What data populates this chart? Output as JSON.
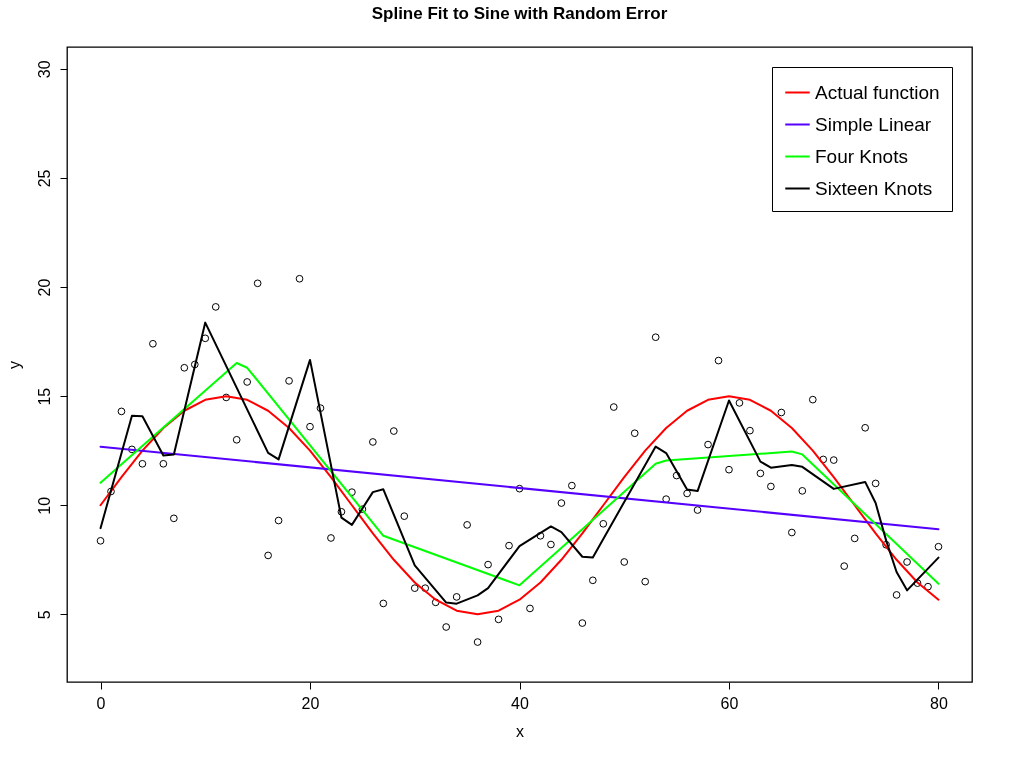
{
  "chart_data": {
    "type": "scatter",
    "title": "Spline Fit to Sine with Random Error",
    "xlabel": "x",
    "ylabel": "y",
    "xlim": [
      -3.2,
      83.2
    ],
    "ylim": [
      1.9,
      31.0
    ],
    "xticks": [
      0,
      20,
      40,
      60,
      80
    ],
    "yticks": [
      5,
      10,
      15,
      20,
      25,
      30
    ],
    "grid": false,
    "legend": "top right",
    "series": [
      {
        "marker": "circle",
        "color": "#000000",
        "x": [
          0,
          1,
          2,
          3,
          4,
          5,
          6,
          7,
          8,
          9,
          10,
          11,
          12,
          13,
          14,
          15,
          16,
          17,
          18,
          19,
          20,
          21,
          22,
          23,
          24,
          25,
          26,
          27,
          28,
          29,
          30,
          31,
          32,
          33,
          34,
          35,
          36,
          37,
          38,
          39,
          40,
          41,
          42,
          43,
          44,
          45,
          46,
          47,
          48,
          49,
          50,
          51,
          52,
          53,
          54,
          55,
          56,
          57,
          58,
          59,
          60,
          61,
          62,
          63,
          64,
          65,
          66,
          67,
          68,
          69,
          70,
          71,
          72,
          73,
          74,
          75,
          76,
          77,
          78,
          79,
          80
        ],
        "values": [
          8.37,
          10.63,
          14.3,
          12.56,
          11.9,
          17.4,
          11.9,
          9.4,
          16.3,
          16.45,
          17.65,
          19.09,
          14.94,
          13.0,
          15.65,
          20.17,
          7.7,
          9.3,
          15.7,
          20.38,
          13.6,
          14.45,
          8.5,
          9.7,
          10.6,
          9.82,
          12.9,
          5.5,
          13.4,
          9.5,
          6.2,
          6.2,
          5.55,
          4.42,
          5.8,
          9.1,
          3.73,
          7.28,
          4.77,
          8.15,
          10.76,
          5.27,
          8.6,
          8.2,
          10.1,
          10.9,
          4.6,
          6.56,
          9.15,
          14.5,
          7.4,
          13.3,
          6.5,
          17.7,
          10.28,
          11.36,
          10.54,
          9.78,
          12.78,
          16.63,
          11.63,
          14.69,
          13.42,
          11.46,
          10.86,
          14.25,
          8.75,
          10.66,
          14.84,
          12.1,
          12.07,
          7.21,
          8.48,
          13.55,
          11.0,
          8.19,
          5.89,
          7.4,
          6.43,
          6.27,
          8.1
        ]
      },
      {
        "type": "line",
        "name": "Actual function",
        "color": "#ff0000",
        "line_style": "solid",
        "x": [
          0,
          2,
          4,
          6,
          8,
          10,
          12,
          14,
          16,
          18,
          20,
          22,
          24,
          26,
          28,
          30,
          32,
          34,
          36,
          38,
          40,
          42,
          44,
          46,
          48,
          50,
          52,
          54,
          56,
          58,
          60,
          62,
          64,
          66,
          68,
          70,
          72,
          74,
          76,
          78,
          80
        ],
        "values": [
          10,
          11.29,
          12.5,
          13.54,
          14.33,
          14.83,
          15,
          14.83,
          14.33,
          13.54,
          12.5,
          11.29,
          10,
          8.71,
          7.5,
          6.46,
          5.67,
          5.17,
          5,
          5.17,
          5.67,
          6.46,
          7.5,
          8.71,
          10,
          11.29,
          12.5,
          13.54,
          14.33,
          14.83,
          15,
          14.83,
          14.33,
          13.54,
          12.5,
          11.29,
          10,
          8.71,
          7.5,
          6.46,
          5.67
        ]
      },
      {
        "type": "line",
        "name": "Simple Linear",
        "color": "#5500ff",
        "line_style": "solid",
        "x": [
          0,
          80
        ],
        "values": [
          12.68,
          8.9
        ]
      },
      {
        "type": "line",
        "name": "Four Knots",
        "color": "#00ff00",
        "line_style": "solid",
        "x": [
          0,
          13,
          14,
          27,
          40,
          53,
          54,
          66,
          67,
          80
        ],
        "values": [
          11.03,
          16.52,
          16.3,
          8.6,
          6.33,
          11.9,
          12.05,
          12.46,
          12.33,
          6.4
        ]
      },
      {
        "type": "line",
        "name": "Sixteen Knots",
        "color": "#000000",
        "line_style": "solid",
        "x": [
          0,
          3,
          4,
          6,
          7,
          10,
          16,
          17,
          20,
          23,
          24,
          26,
          27,
          30,
          33,
          34,
          36,
          37,
          40,
          43,
          44,
          46,
          47,
          53,
          54,
          56,
          57,
          60,
          63,
          64,
          66,
          67,
          70,
          73,
          74,
          75,
          76,
          77,
          80
        ],
        "values": [
          8.95,
          14.1,
          14.08,
          12.28,
          12.33,
          18.37,
          12.4,
          12.1,
          16.66,
          9.43,
          9.1,
          10.6,
          10.73,
          7.24,
          5.54,
          5.49,
          5.87,
          6.2,
          8.13,
          9.03,
          8.77,
          7.64,
          7.61,
          12.69,
          12.39,
          10.72,
          10.65,
          14.8,
          12.0,
          11.72,
          11.84,
          11.76,
          10.75,
          11.07,
          10.1,
          8.39,
          6.94,
          6.1,
          7.6
        ]
      }
    ]
  }
}
